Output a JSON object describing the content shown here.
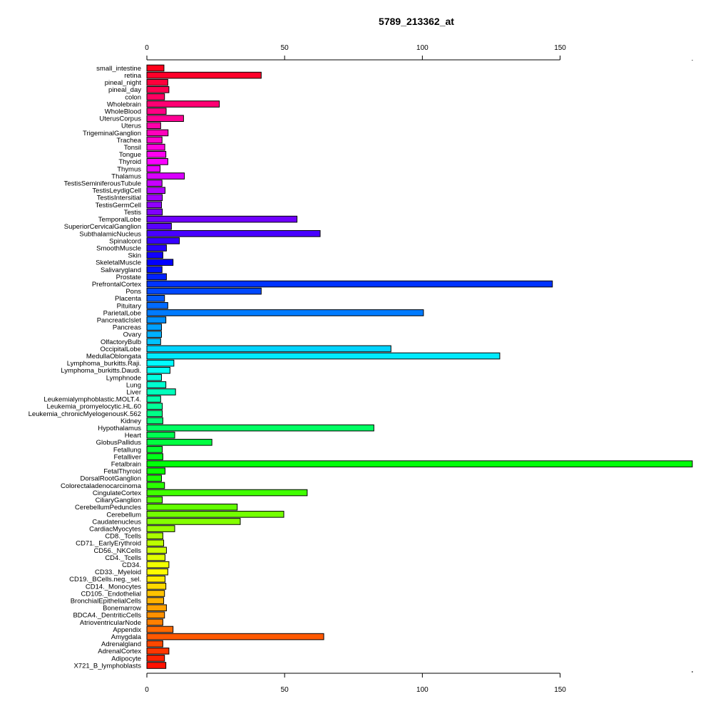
{
  "chart_data": {
    "type": "bar",
    "orientation": "horizontal",
    "title": "5789_213362_at",
    "xlabel": "",
    "ylabel": "",
    "xlim": [
      0,
      198
    ],
    "x_ticks": [
      0,
      50,
      100,
      150
    ],
    "x_tick_labels": [
      "0",
      "50",
      "100",
      "150"
    ],
    "x_axis_position": "top and bottom",
    "grid": false,
    "categories": [
      "small_intestine",
      "retina",
      "pineal_night",
      "pineal_day",
      "colon",
      "Wholebrain",
      "WholeBlood",
      "UterusCorpus",
      "Uterus",
      "TrigeminalGanglion",
      "Trachea",
      "Tonsil",
      "Tongue",
      "Thyroid",
      "Thymus",
      "Thalamus",
      "TestisSeminiferousTubule",
      "TestisLeydigCell",
      "TestisIntersitial",
      "TestisGermCell",
      "Testis",
      "TemporalLobe",
      "SuperiorCervicalGanglion",
      "SubthalamicNucleus",
      "Spinalcord",
      "SmoothMuscle",
      "Skin",
      "SkeletalMuscle",
      "Salivarygland",
      "Prostate",
      "PrefrontalCortex",
      "Pons",
      "Placenta",
      "Pituitary",
      "ParietalLobe",
      "PancreaticIslet",
      "Pancreas",
      "Ovary",
      "OlfactoryBulb",
      "OccipitalLobe",
      "MedullaOblongata",
      "Lymphoma_burkitts.Raji.",
      "Lymphoma_burkitts.Daudi.",
      "Lymphnode",
      "Lung",
      "Liver",
      "Leukemialymphoblastic.MOLT.4.",
      "Leukemia_promyelocytic.HL.60",
      "Leukemia_chronicMyelogenousK.562",
      "Kidney",
      "Hypothalamus",
      "Heart",
      "GlobusPallidus",
      "Fetallung",
      "Fetalliver",
      "Fetalbrain",
      "FetalThyroid",
      "DorsalRootGanglion",
      "Colorectaladenocarcinoma",
      "CingulateCortex",
      "CiliaryGanglion",
      "CerebellumPeduncles",
      "Cerebellum",
      "Caudatenucleus",
      "CardiacMyocytes",
      "CD8._Tcells",
      "CD71._EarlyErythroid",
      "CD56._NKCells",
      "CD4._Tcells",
      "CD34.",
      "CD33._Myeloid",
      "CD19._BCells.neg._sel.",
      "CD14._Monocytes",
      "CD105._Endothelial",
      "BronchialEpithelialCells",
      "Bonemarrow",
      "BDCA4._DentriticCells",
      "AtrioventricularNode",
      "Appendix",
      "Amygdala",
      "Adrenalgland",
      "AdrenalCortex",
      "Adipocyte",
      "X721_B_lymphoblasts"
    ],
    "values": [
      6.2,
      41.5,
      7.6,
      8.0,
      6.4,
      26.3,
      7.0,
      13.3,
      5.0,
      7.7,
      5.5,
      6.5,
      6.9,
      7.6,
      4.8,
      13.6,
      5.5,
      6.6,
      5.6,
      5.3,
      5.6,
      54.5,
      8.9,
      62.9,
      11.8,
      7.1,
      5.8,
      9.5,
      5.5,
      7.1,
      147.2,
      41.5,
      6.4,
      7.6,
      100.4,
      6.9,
      5.3,
      5.3,
      5.0,
      88.6,
      128.1,
      9.8,
      8.4,
      5.3,
      6.9,
      10.4,
      5.0,
      5.6,
      5.6,
      5.8,
      82.4,
      10.1,
      23.6,
      5.6,
      5.8,
      198.0,
      6.6,
      5.3,
      6.4,
      58.2,
      5.6,
      32.8,
      49.7,
      33.9,
      10.1,
      5.8,
      6.1,
      7.1,
      6.6,
      8.0,
      7.6,
      6.6,
      6.9,
      6.4,
      6.1,
      7.1,
      6.4,
      5.8,
      9.5,
      64.2,
      5.8,
      8.0,
      6.4,
      6.9
    ]
  }
}
